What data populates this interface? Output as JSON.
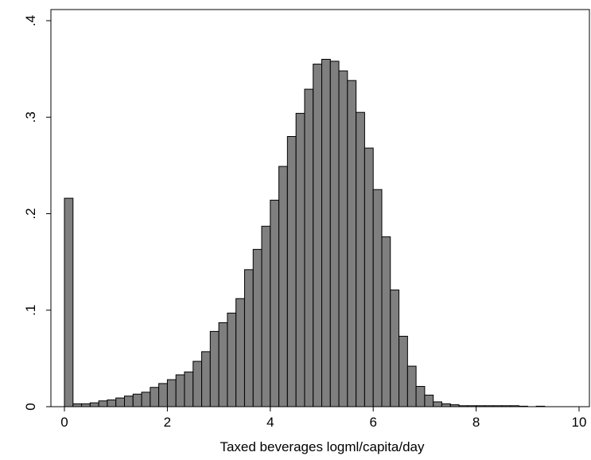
{
  "chart_data": {
    "type": "histogram",
    "xlabel": "Taxed beverages logml/capita/day",
    "bins": [
      0,
      0.167,
      0.333,
      0.5,
      0.667,
      0.833,
      1,
      1.167,
      1.333,
      1.5,
      1.667,
      1.833,
      2,
      2.167,
      2.333,
      2.5,
      2.667,
      2.833,
      3,
      3.167,
      3.333,
      3.5,
      3.667,
      3.833,
      4,
      4.167,
      4.333,
      4.5,
      4.667,
      4.833,
      5,
      5.167,
      5.333,
      5.5,
      5.667,
      5.833,
      6,
      6.167,
      6.333,
      6.5,
      6.667,
      6.833,
      7,
      7.167,
      7.333,
      7.5,
      7.667,
      7.833,
      8,
      8.167,
      8.333,
      8.5,
      8.667,
      8.833,
      9,
      9.167,
      9.333,
      9.5,
      9.667,
      9.833
    ],
    "values": [
      0.216,
      0.003,
      0.003,
      0.004,
      0.006,
      0.007,
      0.009,
      0.011,
      0.013,
      0.015,
      0.02,
      0.024,
      0.028,
      0.033,
      0.036,
      0.047,
      0.057,
      0.078,
      0.087,
      0.097,
      0.112,
      0.142,
      0.163,
      0.187,
      0.214,
      0.249,
      0.28,
      0.304,
      0.329,
      0.355,
      0.36,
      0.358,
      0.348,
      0.338,
      0.305,
      0.268,
      0.225,
      0.176,
      0.121,
      0.073,
      0.042,
      0.021,
      0.012,
      0.005,
      0.003,
      0.002,
      0.001,
      0.001,
      0.001,
      0.001,
      0.001,
      0.001,
      0.001,
      0.0005,
      0,
      0.0005,
      0,
      0,
      0
    ],
    "color": "#7f7f7f",
    "xlim": [
      0,
      10
    ],
    "xticks": [
      0,
      2,
      4,
      6,
      8,
      10
    ],
    "ylim": [
      0,
      0.4
    ],
    "yticks": [
      0,
      {
        "value": 0.1,
        "label": ".1"
      },
      {
        "value": 0.2,
        "label": ".2"
      },
      {
        "value": 0.3,
        "label": ".3"
      },
      {
        "value": 0.4,
        "label": ".4"
      }
    ]
  }
}
